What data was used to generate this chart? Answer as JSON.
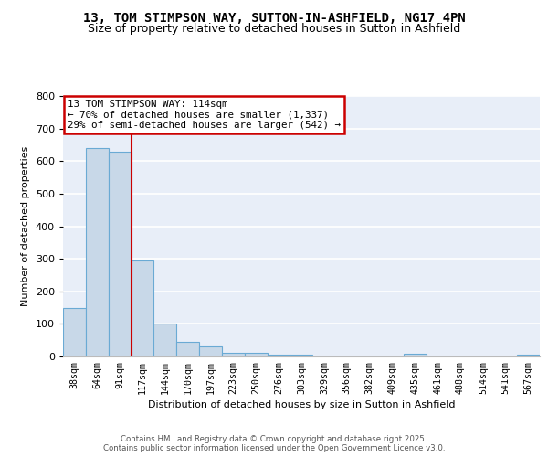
{
  "title1": "13, TOM STIMPSON WAY, SUTTON-IN-ASHFIELD, NG17 4PN",
  "title2": "Size of property relative to detached houses in Sutton in Ashfield",
  "xlabel": "Distribution of detached houses by size in Sutton in Ashfield",
  "ylabel": "Number of detached properties",
  "bins": [
    "38sqm",
    "64sqm",
    "91sqm",
    "117sqm",
    "144sqm",
    "170sqm",
    "197sqm",
    "223sqm",
    "250sqm",
    "276sqm",
    "303sqm",
    "329sqm",
    "356sqm",
    "382sqm",
    "409sqm",
    "435sqm",
    "461sqm",
    "488sqm",
    "514sqm",
    "541sqm",
    "567sqm"
  ],
  "values": [
    150,
    640,
    630,
    295,
    102,
    44,
    30,
    10,
    10,
    7,
    7,
    0,
    0,
    0,
    0,
    8,
    0,
    0,
    0,
    0,
    7
  ],
  "bar_color": "#c8d8e8",
  "bar_edge_color": "#6aaad4",
  "property_line_x": 3.0,
  "annotation_text": "13 TOM STIMPSON WAY: 114sqm\n← 70% of detached houses are smaller (1,337)\n29% of semi-detached houses are larger (542) →",
  "annotation_box_color": "white",
  "annotation_box_edge": "#cc0000",
  "line_color": "#cc0000",
  "footer_text": "Contains HM Land Registry data © Crown copyright and database right 2025.\nContains public sector information licensed under the Open Government Licence v3.0.",
  "ylim": [
    0,
    800
  ],
  "yticks": [
    0,
    100,
    200,
    300,
    400,
    500,
    600,
    700,
    800
  ],
  "bg_color": "#e8eef8",
  "grid_color": "white",
  "title_fontsize": 10,
  "subtitle_fontsize": 9
}
